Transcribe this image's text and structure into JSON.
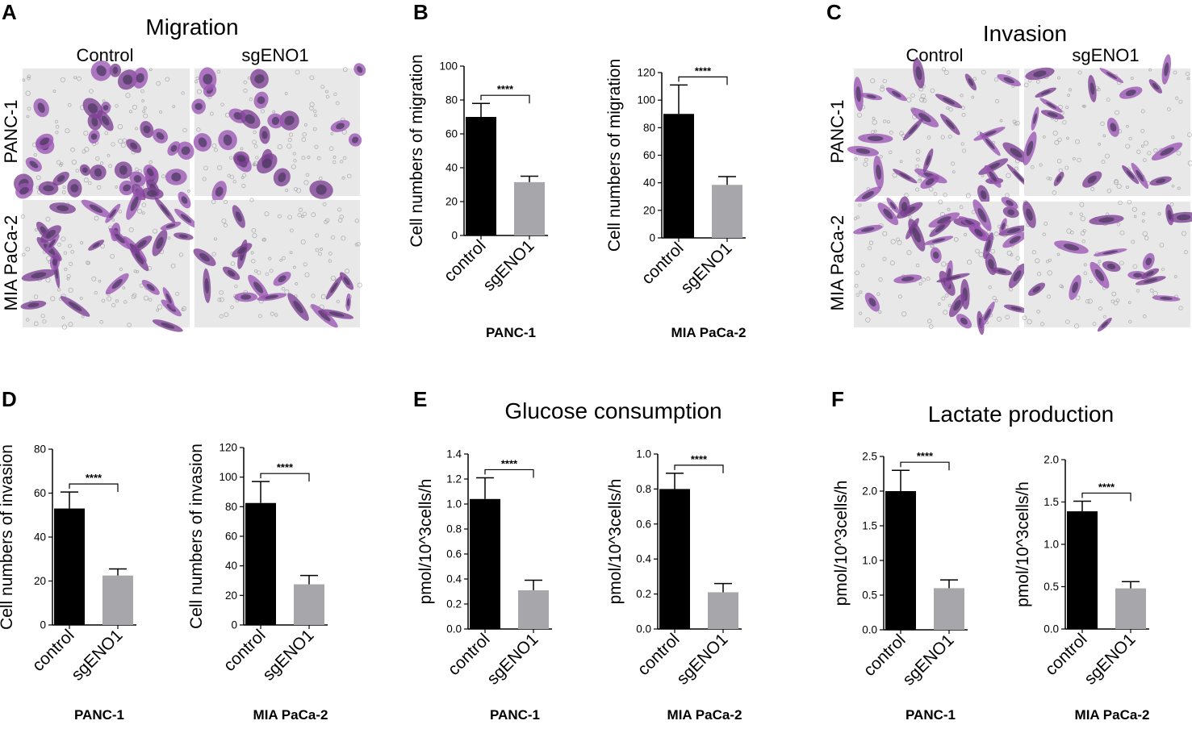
{
  "panels": {
    "A": {
      "letter": "A",
      "title": "Migration",
      "columns": [
        "Control",
        "sgENO1"
      ],
      "rows": [
        "PANC-1",
        "MIA PaCa-2"
      ]
    },
    "B": {
      "letter": "B"
    },
    "C": {
      "letter": "C",
      "title": "Invasion",
      "columns": [
        "Control",
        "sgENO1"
      ],
      "rows": [
        "PANC-1",
        "MIA PaCa-2"
      ]
    },
    "D": {
      "letter": "D"
    },
    "E": {
      "letter": "E",
      "title": "Glucose consumption"
    },
    "F": {
      "letter": "F",
      "title": "Lactate production"
    }
  },
  "colors": {
    "control": "#000000",
    "sgENO1": "#a7a7ab",
    "stain": "#8a3fa0",
    "background": "#e8e8e8"
  },
  "chart_data": [
    {
      "id": "B1",
      "type": "bar",
      "categories": [
        "control",
        "sgENO1"
      ],
      "values": [
        70,
        31.5
      ],
      "errors": [
        8,
        3.5
      ],
      "ylabel": "Cell numbers of migration",
      "xlabel": "PANC-1",
      "ylim": [
        0,
        100
      ],
      "yticks": [
        0,
        20,
        40,
        60,
        80,
        100
      ],
      "significance": "****"
    },
    {
      "id": "B2",
      "type": "bar",
      "categories": [
        "control",
        "sgENO1"
      ],
      "values": [
        90,
        38.5
      ],
      "errors": [
        21,
        6
      ],
      "ylabel": "Cell numbers of migration",
      "xlabel": "MIA PaCa-2",
      "ylim": [
        0,
        120
      ],
      "yticks": [
        0,
        20,
        40,
        60,
        80,
        100,
        120
      ],
      "significance": "****"
    },
    {
      "id": "D1",
      "type": "bar",
      "categories": [
        "control",
        "sgENO1"
      ],
      "values": [
        53,
        22.5
      ],
      "errors": [
        7.5,
        3
      ],
      "ylabel": "Cell numbers of invasion",
      "xlabel": "PANC-1",
      "ylim": [
        0,
        80
      ],
      "yticks": [
        0,
        20,
        40,
        60,
        80
      ],
      "significance": "****"
    },
    {
      "id": "D2",
      "type": "bar",
      "categories": [
        "control",
        "sgENO1"
      ],
      "values": [
        82.5,
        27.5
      ],
      "errors": [
        14.5,
        6
      ],
      "ylabel": "Cell numbers of invasion",
      "xlabel": "MIA PaCa-2",
      "ylim": [
        0,
        120
      ],
      "yticks": [
        0,
        20,
        40,
        60,
        80,
        100,
        120
      ],
      "significance": "****"
    },
    {
      "id": "E1",
      "type": "bar",
      "categories": [
        "control",
        "sgENO1"
      ],
      "values": [
        1.04,
        0.31
      ],
      "errors": [
        0.17,
        0.08
      ],
      "ylabel": "pmol/10^3cells/h",
      "xlabel": "PANC-1",
      "ylim": [
        0,
        1.4
      ],
      "yticks": [
        "0.0",
        "0.2",
        "0.4",
        "0.6",
        "0.8",
        "1.0",
        "1.2",
        "1.4"
      ],
      "significance": "****"
    },
    {
      "id": "E2",
      "type": "bar",
      "categories": [
        "control",
        "sgENO1"
      ],
      "values": [
        0.8,
        0.21
      ],
      "errors": [
        0.09,
        0.05
      ],
      "ylabel": "pmol/10^3cells/h",
      "xlabel": "MIA PaCa-2",
      "ylim": [
        0,
        1.0
      ],
      "yticks": [
        "0.0",
        "0.2",
        "0.4",
        "0.6",
        "0.8",
        "1.0"
      ],
      "significance": "****"
    },
    {
      "id": "F1",
      "type": "bar",
      "categories": [
        "control",
        "sgENO1"
      ],
      "values": [
        2.0,
        0.6
      ],
      "errors": [
        0.3,
        0.12
      ],
      "ylabel": "pmol/10^3cells/h",
      "xlabel": "PANC-1",
      "ylim": [
        0,
        2.5
      ],
      "yticks": [
        "0.0",
        "0.5",
        "1.0",
        "1.5",
        "2.0",
        "2.5"
      ],
      "significance": "****"
    },
    {
      "id": "F2",
      "type": "bar",
      "categories": [
        "control",
        "sgENO1"
      ],
      "values": [
        1.39,
        0.48
      ],
      "errors": [
        0.12,
        0.08
      ],
      "ylabel": "pmol/10^3cells/h",
      "xlabel": "MIA PaCa-2",
      "ylim": [
        0,
        2.0
      ],
      "yticks": [
        "0.0",
        "0.5",
        "1.0",
        "1.5",
        "2.0"
      ],
      "significance": "****"
    }
  ]
}
